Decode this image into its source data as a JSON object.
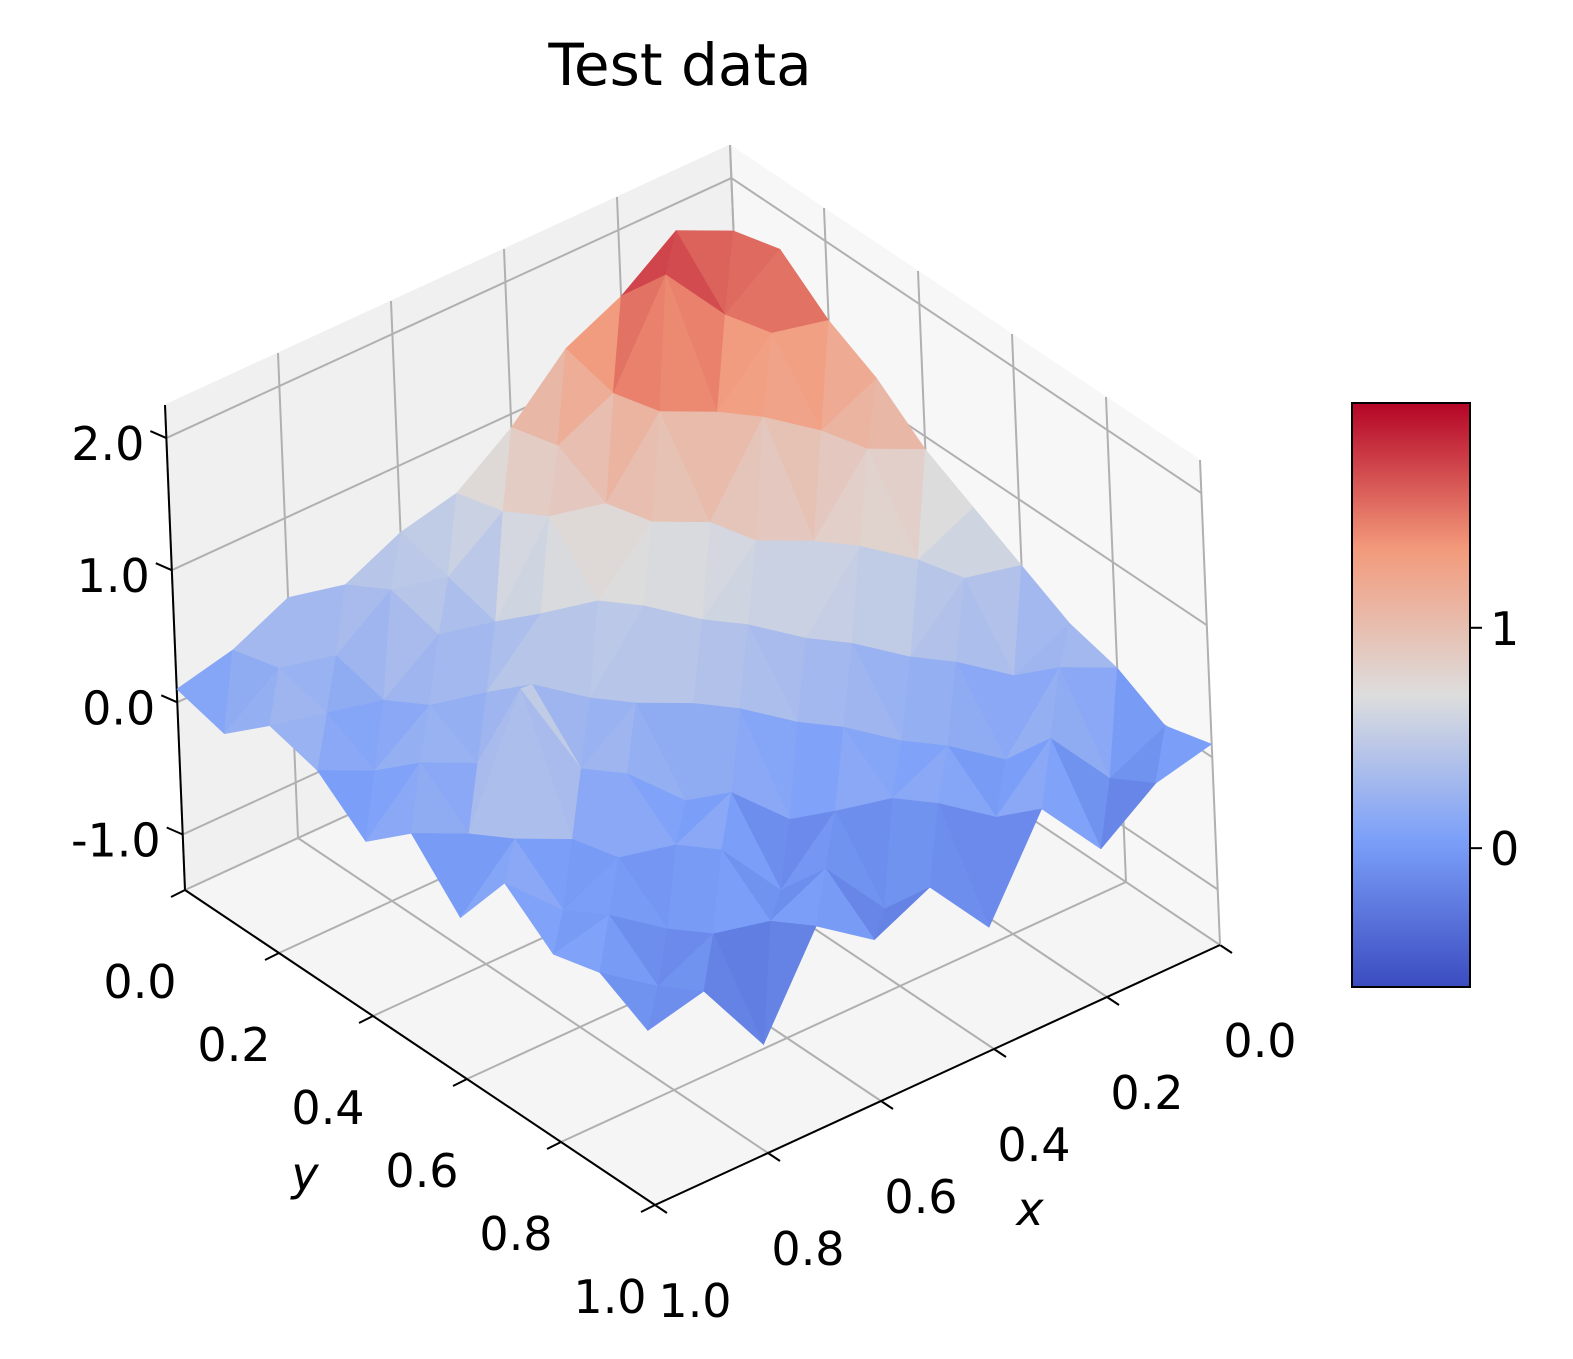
{
  "chart_data": {
    "type": "surface3d",
    "title": "Test data",
    "x_label": "x",
    "y_label": "y",
    "colormap": "coolwarm",
    "x": [
      0,
      0.1,
      0.2,
      0.3,
      0.4,
      0.5,
      0.6,
      0.7,
      0.8,
      0.9,
      1.0
    ],
    "y": [
      0,
      0.1,
      0.2,
      0.3,
      0.4,
      0.5,
      0.6,
      0.7,
      0.8,
      0.9,
      1.0
    ],
    "z": [
      [
        1.6,
        1.8,
        1.5,
        1.3,
        0.9,
        0.6,
        0.5,
        0.3,
        0.4,
        0.2,
        0.1
      ],
      [
        1.7,
        1.4,
        1.9,
        1.2,
        1.0,
        0.7,
        0.4,
        0.5,
        0.2,
        0.3,
        0.0
      ],
      [
        1.4,
        1.5,
        1.1,
        1.3,
        0.8,
        0.9,
        0.3,
        0.4,
        0.1,
        0.2,
        0.3
      ],
      [
        1.2,
        1.0,
        1.3,
        0.7,
        0.9,
        0.5,
        0.6,
        0.2,
        0.3,
        0.0,
        0.2
      ],
      [
        0.9,
        1.1,
        0.6,
        0.8,
        0.4,
        0.7,
        0.2,
        0.5,
        0.1,
        0.3,
        -0.1
      ],
      [
        0.7,
        0.5,
        0.8,
        0.3,
        0.6,
        0.2,
        0.4,
        0.1,
        0.9,
        0.0,
        0.2
      ],
      [
        0.5,
        0.6,
        0.2,
        0.5,
        0.1,
        0.4,
        -0.1,
        0.3,
        0.0,
        0.2,
        -0.2
      ],
      [
        0.3,
        0.1,
        0.4,
        0.0,
        0.3,
        -0.2,
        0.2,
        0.0,
        0.1,
        -0.1,
        0.3
      ],
      [
        0.2,
        0.4,
        -0.1,
        0.2,
        0.0,
        0.1,
        -0.3,
        0.2,
        -0.2,
        0.1,
        0.0
      ],
      [
        0.0,
        -0.2,
        0.3,
        -0.1,
        0.2,
        -0.4,
        0.1,
        -0.1,
        0.0,
        -0.2,
        0.1
      ],
      [
        0.1,
        0.0,
        -0.3,
        0.2,
        -0.5,
        0.0,
        -0.2,
        0.1,
        -0.6,
        0.0,
        -0.1
      ]
    ],
    "xlim": [
      0,
      1
    ],
    "ylim": [
      0,
      1
    ],
    "zlim": [
      -1.42,
      2.25
    ],
    "xticks": [
      {
        "value": 0,
        "label": "0.0"
      },
      {
        "value": 0.2,
        "label": "0.2"
      },
      {
        "value": 0.4,
        "label": "0.4"
      },
      {
        "value": 0.6,
        "label": "0.6"
      },
      {
        "value": 0.8,
        "label": "0.8"
      },
      {
        "value": 1.0,
        "label": "1.0"
      }
    ],
    "yticks": [
      {
        "value": 0,
        "label": "0.0"
      },
      {
        "value": 0.2,
        "label": "0.2"
      },
      {
        "value": 0.4,
        "label": "0.4"
      },
      {
        "value": 0.6,
        "label": "0.6"
      },
      {
        "value": 0.8,
        "label": "0.8"
      },
      {
        "value": 1.0,
        "label": "1.0"
      }
    ],
    "zticks": [
      {
        "value": -1,
        "label": "-1.0"
      },
      {
        "value": 0,
        "label": "0.0"
      },
      {
        "value": 1,
        "label": "1.0"
      },
      {
        "value": 2,
        "label": "2.0"
      }
    ],
    "clim": [
      -0.63,
      2.02
    ],
    "colorbar_ticks": [
      0,
      1
    ],
    "grid": true
  }
}
